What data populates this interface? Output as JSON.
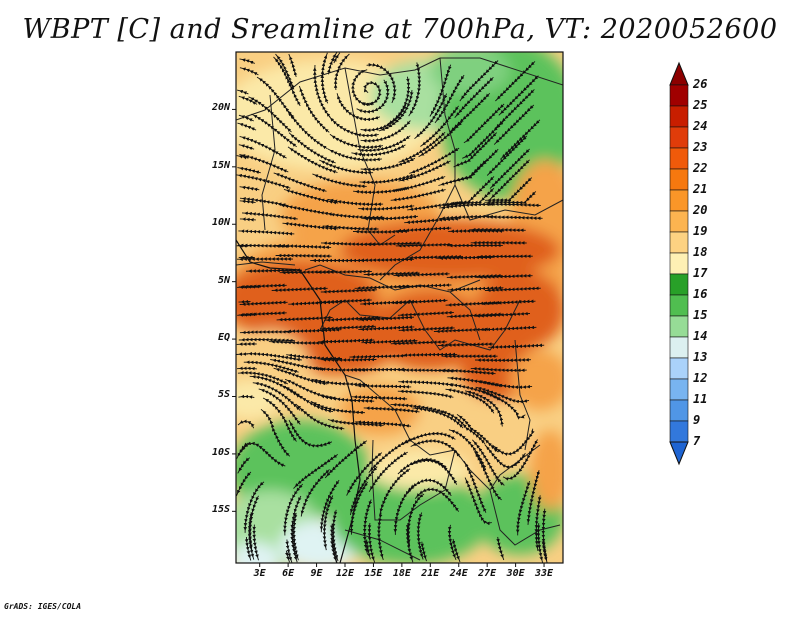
{
  "title": "WBPT [C] and Sreamline at 700hPa, VT: 2020052600",
  "credit": "GrADS: IGES/COLA",
  "map": {
    "lat_ticks": [
      "20N",
      "15N",
      "10N",
      "5N",
      "EQ",
      "5S",
      "10S",
      "15S"
    ],
    "lat_values": [
      20,
      15,
      10,
      5,
      0,
      -5,
      -10,
      -15
    ],
    "lon_ticks": [
      "3E",
      "6E",
      "9E",
      "12E",
      "15E",
      "18E",
      "21E",
      "24E",
      "27E",
      "30E",
      "33E"
    ],
    "lon_values": [
      3,
      6,
      9,
      12,
      15,
      18,
      21,
      24,
      27,
      30,
      33
    ],
    "extent": {
      "lon_min": 0.5,
      "lon_max": 35,
      "lat_min": -19.5,
      "lat_max": 25
    }
  },
  "colorbar": {
    "levels": [
      "26",
      "25",
      "24",
      "23",
      "22",
      "21",
      "20",
      "19",
      "18",
      "17",
      "16",
      "15",
      "14",
      "13",
      "12",
      "11",
      "9",
      "7"
    ],
    "colors": [
      "#a00000",
      "#c81e00",
      "#e03c0a",
      "#f05a0a",
      "#f6780f",
      "#fa9628",
      "#fcb450",
      "#fdd282",
      "#fef0b4",
      "#28a028",
      "#50be50",
      "#96dc96",
      "#dcf0f0",
      "#aad2fa",
      "#78b4f0",
      "#5096e6",
      "#3278dc",
      "#1e5ac8"
    ],
    "top_color": "#8c0000",
    "bottom_color": "#1e64d2"
  },
  "colors": {
    "hot": "#e0601a",
    "warm": "#f5a34a",
    "mild": "#f9cf83",
    "pale": "#fbe9a8",
    "green": "#5cc25c",
    "lightgreen": "#a9e0a0",
    "cyan": "#dff3f3"
  }
}
